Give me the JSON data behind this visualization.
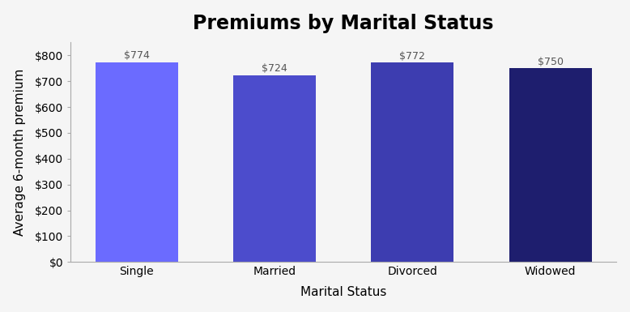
{
  "title": "Premiums by Marital Status",
  "categories": [
    "Single",
    "Married",
    "Divorced",
    "Widowed"
  ],
  "values": [
    774,
    724,
    772,
    750
  ],
  "bar_colors": [
    "#6b6bff",
    "#4c4ccc",
    "#3d3db0",
    "#1e1e6e"
  ],
  "xlabel": "Marital Status",
  "ylabel": "Average 6-month premium",
  "ylim": [
    0,
    850
  ],
  "yticks": [
    0,
    100,
    200,
    300,
    400,
    500,
    600,
    700,
    800
  ],
  "title_fontsize": 17,
  "label_fontsize": 11,
  "tick_fontsize": 10,
  "annotation_fontsize": 9,
  "background_color": "#f5f5f5"
}
